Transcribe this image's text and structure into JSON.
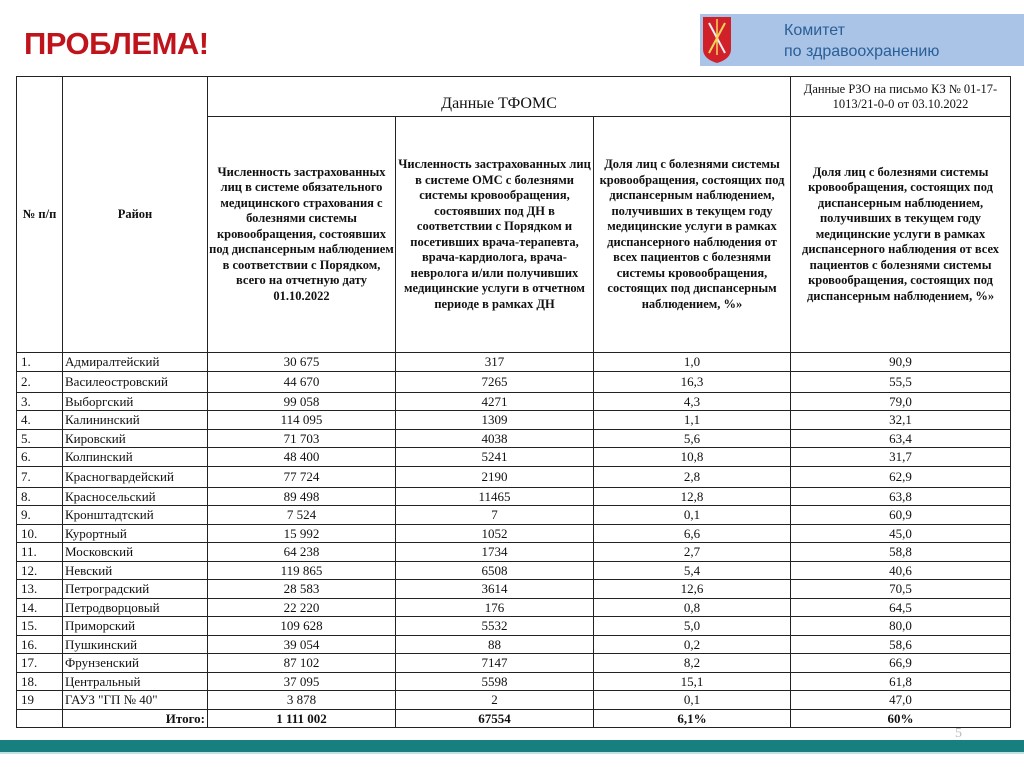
{
  "title": "ПРОБЛЕМА!",
  "org": {
    "line1": "Комитет",
    "line2": "по здравоохранению",
    "band_color": "#a9c4e6"
  },
  "header": {
    "num": "№ п/п",
    "district": "Район",
    "tfoms": "Данные ТФОМС",
    "rzo": "Данные РЗО на письмо КЗ № 01-17-1013/21-0-0 от 03.10.2022",
    "col1": "Численность застрахованных лиц в системе обязательного медицинского страхования с болезнями системы кровообращения, состоявших под диспансерным наблюдением в соответствии с Порядком, всего на отчетную дату 01.10.2022",
    "col2": "Численность застрахованных лиц в системе ОМС с болезнями системы кровообращения, состоявших под ДН в соответствии с Порядком и посетивших врача-терапевта, врача-кардиолога, врача-невролога и/или получивших медицинские услуги в отчетном периоде в рамках ДН",
    "col3": "Доля лиц с болезнями системы кровообращения, состоящих под диспансерным наблюдением, получивших в текущем году медицинские услуги в рамках диспансерного наблюдения от всех пациентов с болезнями системы кровообращения, состоящих под диспансерным наблюдением, %»",
    "col4": "Доля лиц с болезнями системы кровообращения, состоящих под диспансерным наблюдением, получивших в текущем году медицинские услуги в рамках диспансерного наблюдения от всех пациентов с болезнями системы кровообращения, состоящих под диспансерным наблюдением, %»"
  },
  "rows": [
    [
      "1.",
      "Адмиралтейский",
      "30 675",
      "317",
      "1,0",
      "90,9"
    ],
    [
      "2.",
      "Василеостровский",
      "44 670",
      "7265",
      "16,3",
      "55,5"
    ],
    [
      "3.",
      "Выборгский",
      "99 058",
      "4271",
      "4,3",
      "79,0"
    ],
    [
      "4.",
      "Калининский",
      "114 095",
      "1309",
      "1,1",
      "32,1"
    ],
    [
      "5.",
      "Кировский",
      "71 703",
      "4038",
      "5,6",
      "63,4"
    ],
    [
      "6.",
      "Колпинский",
      "48 400",
      "5241",
      "10,8",
      "31,7"
    ],
    [
      "7.",
      "Красногвардейский",
      "77 724",
      "2190",
      "2,8",
      "62,9"
    ],
    [
      "8.",
      "Красносельский",
      "89 498",
      "11465",
      "12,8",
      "63,8"
    ],
    [
      "9.",
      "Кронштадтский",
      "7 524",
      "7",
      "0,1",
      "60,9"
    ],
    [
      "10.",
      "Курортный",
      "15 992",
      "1052",
      "6,6",
      "45,0"
    ],
    [
      "11.",
      "Московский",
      "64 238",
      "1734",
      "2,7",
      "58,8"
    ],
    [
      "12.",
      "Невский",
      "119 865",
      "6508",
      "5,4",
      "40,6"
    ],
    [
      "13.",
      "Петроградский",
      "28 583",
      "3614",
      "12,6",
      "70,5"
    ],
    [
      "14.",
      "Петродворцовый",
      "22 220",
      "176",
      "0,8",
      "64,5"
    ],
    [
      "15.",
      "Приморский",
      "109 628",
      "5532",
      "5,0",
      "80,0"
    ],
    [
      "16.",
      "Пушкинский",
      "39 054",
      "88",
      "0,2",
      "58,6"
    ],
    [
      "17.",
      "Фрунзенский",
      "87 102",
      "7147",
      "8,2",
      "66,9"
    ],
    [
      "18.",
      "Центральный",
      "37 095",
      "5598",
      "15,1",
      "61,8"
    ],
    [
      "19",
      "ГАУЗ \"ГП № 40\"",
      "3 878",
      "2",
      "0,1",
      "47,0"
    ]
  ],
  "total": {
    "label": "Итого:",
    "col1": "1 111 002",
    "col2": "67554",
    "col3": "6,1%",
    "col4": "60%"
  },
  "page_number": "5",
  "colors": {
    "title": "#c0141c",
    "band": "#17807e"
  }
}
